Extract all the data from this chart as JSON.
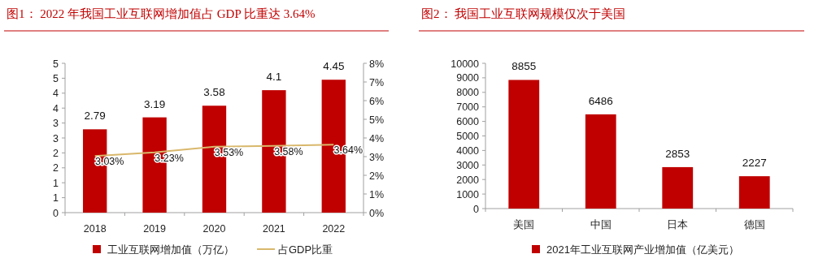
{
  "chart_data": [
    {
      "type": "bar",
      "title": "图1： 2022 年我国工业互联网增加值占 GDP 比重达 3.64%",
      "categories": [
        "2018",
        "2019",
        "2020",
        "2021",
        "2022"
      ],
      "series": [
        {
          "name": "工业互联网增加值（万亿）",
          "color": "#c00000",
          "values": [
            2.79,
            3.19,
            3.58,
            4.1,
            4.45
          ],
          "value_labels": [
            "2.79",
            "3.19",
            "3.58",
            "4.1",
            "4.45"
          ]
        },
        {
          "name": "占GDP比重",
          "type": "line",
          "axis": "y2",
          "color": "#d9b86c",
          "values": [
            3.03,
            3.23,
            3.53,
            3.58,
            3.64
          ],
          "value_labels": [
            "3.03%",
            "3.23%",
            "3.53%",
            "3.58%",
            "3.64%"
          ]
        }
      ],
      "ylim": [
        0,
        5
      ],
      "yticks": [
        0,
        {
          "value": 0.5,
          "label": "1"
        },
        1,
        {
          "value": 1.5,
          "label": "2"
        },
        2,
        {
          "value": 2.5,
          "label": "3"
        },
        3,
        {
          "value": 3.5,
          "label": "4"
        },
        4,
        {
          "value": 4.5,
          "label": "5"
        },
        5
      ],
      "y2lim": [
        0,
        8
      ],
      "y2ticks": [
        {
          "value": 0,
          "label": "0%"
        },
        {
          "value": 1,
          "label": "1%"
        },
        {
          "value": 2,
          "label": "2%"
        },
        {
          "value": 3,
          "label": "3%"
        },
        {
          "value": 4,
          "label": "4%"
        },
        {
          "value": 5,
          "label": "5%"
        },
        {
          "value": 6,
          "label": "6%"
        },
        {
          "value": 7,
          "label": "7%"
        },
        {
          "value": 8,
          "label": "8%"
        }
      ],
      "legend": "bottom"
    },
    {
      "type": "bar",
      "title": "图2： 我国工业互联网规模仅次于美国",
      "categories": [
        "美国",
        "中国",
        "日本",
        "德国"
      ],
      "series": [
        {
          "name": "2021年工业互联网产业增加值（亿美元）",
          "color": "#c00000",
          "values": [
            8855,
            6486,
            2853,
            2227
          ]
        }
      ],
      "ylim": [
        0,
        10000
      ],
      "yticks": [
        0,
        1000,
        2000,
        3000,
        4000,
        5000,
        6000,
        7000,
        8000,
        9000,
        10000
      ],
      "data_labels": true,
      "legend": "bottom"
    }
  ]
}
